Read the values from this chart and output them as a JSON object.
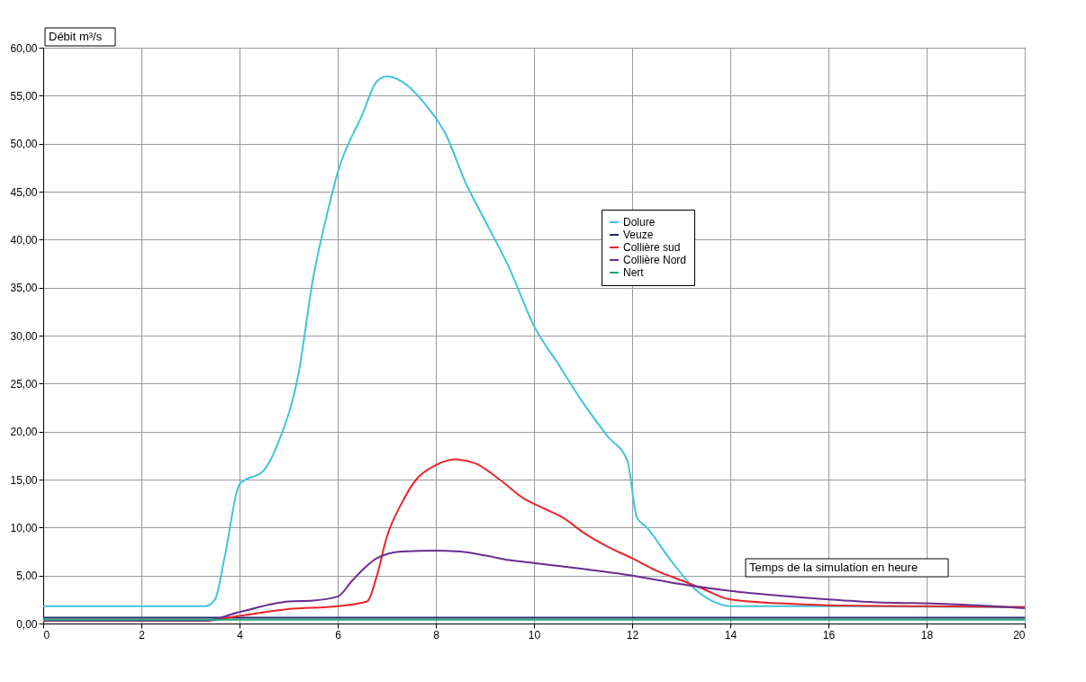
{
  "chart_data": {
    "type": "line",
    "ylabel": "Débit m³/s",
    "xlabel": "Temps de la simulation en heure",
    "xlim": [
      0,
      20
    ],
    "xticks": [
      0,
      2,
      4,
      6,
      8,
      10,
      12,
      14,
      16,
      18,
      20
    ],
    "ylim": [
      0,
      60
    ],
    "yticks": [
      {
        "value": 0,
        "label": "0,00"
      },
      {
        "value": 5,
        "label": "5,00"
      },
      {
        "value": 10,
        "label": "10,00"
      },
      {
        "value": 15,
        "label": "15,00"
      },
      {
        "value": 20,
        "label": "20,00"
      },
      {
        "value": 25,
        "label": "25,00"
      },
      {
        "value": 30,
        "label": "30,00"
      },
      {
        "value": 35,
        "label": "35,00"
      },
      {
        "value": 40,
        "label": "40,00"
      },
      {
        "value": 45,
        "label": "45,00"
      },
      {
        "value": 50,
        "label": "50,00"
      },
      {
        "value": 55,
        "label": "55,00"
      },
      {
        "value": 60,
        "label": "60,00"
      }
    ],
    "grid": true,
    "legend": "right",
    "marker": "none",
    "line_style": "solid",
    "series": [
      {
        "name": "Dolure",
        "color": "#3fc4dc",
        "x": [
          0,
          3.3,
          3.5,
          3.7,
          4,
          4.5,
          4.8,
          5.2,
          5.5,
          5.8,
          6,
          6.5,
          6.8,
          7,
          7.3,
          7.8,
          8.2,
          8.6,
          9,
          9.5,
          10,
          10.5,
          11,
          11.5,
          11.9,
          12.1,
          12.3,
          12.8,
          13.3,
          13.8,
          14,
          16,
          20
        ],
        "values": [
          1.8,
          1.8,
          2.5,
          7,
          14.5,
          16,
          19,
          26,
          36,
          43,
          47,
          53,
          56.5,
          57,
          56.5,
          54,
          51,
          46,
          42,
          37,
          31,
          27,
          23,
          19.5,
          17,
          11,
          10,
          6.5,
          3.5,
          2,
          1.8,
          1.8,
          1.7
        ]
      },
      {
        "name": "Veuze",
        "color": "#1f2a6b",
        "x": [
          0,
          20
        ],
        "values": [
          0.6,
          0.6
        ]
      },
      {
        "name": "Collière sud",
        "color": "#e8262a",
        "x": [
          0,
          3.3,
          4,
          5,
          6,
          6.6,
          6.8,
          7,
          7.3,
          7.6,
          8,
          8.4,
          8.8,
          9.3,
          9.8,
          10.2,
          10.6,
          11,
          11.5,
          12,
          12.5,
          13,
          13.4,
          14,
          15,
          16,
          18,
          20
        ],
        "values": [
          0.3,
          0.3,
          0.8,
          1.5,
          1.8,
          2.3,
          5,
          9,
          12.5,
          15,
          16.5,
          17.1,
          16.7,
          15,
          13,
          12,
          11,
          9.5,
          8,
          6.8,
          5.5,
          4.5,
          3.7,
          2.5,
          2.1,
          1.9,
          1.8,
          1.7
        ]
      },
      {
        "name": "Collière Nord",
        "color": "#6a2d8f",
        "x": [
          0,
          3.3,
          4,
          5,
          5.5,
          6,
          6.3,
          6.8,
          7.3,
          8,
          8.5,
          9,
          9.5,
          10,
          11,
          12,
          13,
          14,
          15,
          16,
          17,
          18,
          19,
          20
        ],
        "values": [
          0.3,
          0.3,
          1.2,
          2.3,
          2.4,
          2.8,
          4.5,
          6.8,
          7.5,
          7.6,
          7.5,
          7.1,
          6.6,
          6.3,
          5.7,
          5,
          4.1,
          3.4,
          2.9,
          2.5,
          2.2,
          2.1,
          1.9,
          1.6
        ]
      },
      {
        "name": "Nert",
        "color": "#2aa37a",
        "x": [
          0,
          20
        ],
        "values": [
          0.4,
          0.4
        ]
      }
    ]
  }
}
